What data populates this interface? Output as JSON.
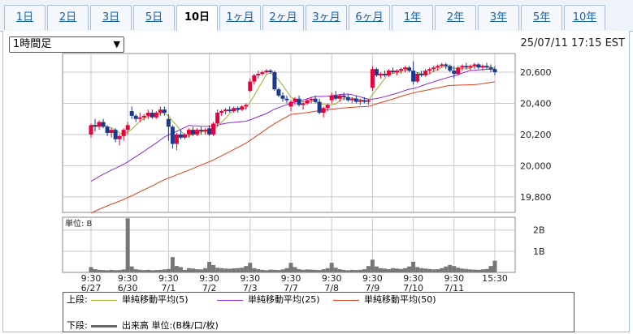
{
  "tabs": [
    {
      "label": "1日"
    },
    {
      "label": "2日"
    },
    {
      "label": "3日"
    },
    {
      "label": "5日"
    },
    {
      "label": "10日",
      "active": true
    },
    {
      "label": "1ヶ月"
    },
    {
      "label": "2ヶ月"
    },
    {
      "label": "3ヶ月"
    },
    {
      "label": "6ヶ月"
    },
    {
      "label": "1年"
    },
    {
      "label": "2年"
    },
    {
      "label": "3年"
    },
    {
      "label": "5年"
    },
    {
      "label": "10年"
    }
  ],
  "interval_select": {
    "value": "1時間足"
  },
  "timestamp": "25/07/11 17:15 EST",
  "colors": {
    "up": "#e8003c",
    "down": "#1a3a8f",
    "ma5": "#9aae2e",
    "ma25": "#8a2be2",
    "ma50": "#e0401b",
    "volume": "#777777"
  },
  "chart_data": {
    "type": "candlestick",
    "ylim": [
      19700,
      20720
    ],
    "y_ticks": [
      "20,600",
      "20,400",
      "20,200",
      "20,000",
      "19,800"
    ],
    "x_ticks": [
      {
        "index": 0,
        "time": "9:30",
        "date": "6/27"
      },
      {
        "index": 9,
        "time": "9:30",
        "date": "6/30"
      },
      {
        "index": 19,
        "time": "9:30",
        "date": "7/1"
      },
      {
        "index": 29,
        "time": "9:30",
        "date": "7/2"
      },
      {
        "index": 39,
        "time": "9:30",
        "date": "7/3"
      },
      {
        "index": 49,
        "time": "9:30",
        "date": "7/7"
      },
      {
        "index": 59,
        "time": "9:30",
        "date": "7/8"
      },
      {
        "index": 69,
        "time": "9:30",
        "date": "7/9"
      },
      {
        "index": 79,
        "time": "9:30",
        "date": "7/10"
      },
      {
        "index": 89,
        "time": "9:30",
        "date": "7/11"
      },
      {
        "index": 99,
        "time": "15:30",
        "date": ""
      }
    ],
    "candles": [
      [
        20200,
        20270,
        20180,
        20260
      ],
      [
        20260,
        20300,
        20220,
        20250
      ],
      [
        20250,
        20290,
        20230,
        20280
      ],
      [
        20280,
        20300,
        20240,
        20250
      ],
      [
        20250,
        20260,
        20190,
        20210
      ],
      [
        20210,
        20240,
        20180,
        20230
      ],
      [
        20230,
        20240,
        20150,
        20170
      ],
      [
        20170,
        20200,
        20130,
        20190
      ],
      [
        20190,
        20240,
        20160,
        20230
      ],
      [
        20230,
        20280,
        20200,
        20260
      ],
      [
        20350,
        20380,
        20300,
        20320
      ],
      [
        20320,
        20330,
        20280,
        20300
      ],
      [
        20300,
        20340,
        20280,
        20310
      ],
      [
        20310,
        20330,
        20290,
        20320
      ],
      [
        20320,
        20360,
        20300,
        20340
      ],
      [
        20340,
        20360,
        20300,
        20310
      ],
      [
        20310,
        20350,
        20300,
        20340
      ],
      [
        20340,
        20380,
        20320,
        20360
      ],
      [
        20360,
        20380,
        20320,
        20340
      ],
      [
        20300,
        20330,
        20160,
        20250
      ],
      [
        20250,
        20260,
        20110,
        20140
      ],
      [
        20140,
        20210,
        20100,
        20200
      ],
      [
        20200,
        20230,
        20170,
        20180
      ],
      [
        20180,
        20210,
        20170,
        20200
      ],
      [
        20200,
        20240,
        20180,
        20230
      ],
      [
        20230,
        20250,
        20190,
        20200
      ],
      [
        20200,
        20240,
        20190,
        20230
      ],
      [
        20230,
        20250,
        20200,
        20220
      ],
      [
        20220,
        20240,
        20200,
        20230
      ],
      [
        20240,
        20260,
        20190,
        20200
      ],
      [
        20200,
        20280,
        20190,
        20270
      ],
      [
        20270,
        20360,
        20250,
        20340
      ],
      [
        20340,
        20360,
        20320,
        20350
      ],
      [
        20350,
        20370,
        20330,
        20360
      ],
      [
        20360,
        20380,
        20340,
        20350
      ],
      [
        20350,
        20380,
        20340,
        20370
      ],
      [
        20370,
        20380,
        20340,
        20360
      ],
      [
        20360,
        20390,
        20350,
        20380
      ],
      [
        20380,
        20400,
        20360,
        20390
      ],
      [
        20480,
        20560,
        20470,
        20540
      ],
      [
        20540,
        20590,
        20520,
        20580
      ],
      [
        20580,
        20610,
        20560,
        20590
      ],
      [
        20590,
        20610,
        20580,
        20600
      ],
      [
        20600,
        20620,
        20590,
        20610
      ],
      [
        20610,
        20620,
        20590,
        20600
      ],
      [
        20600,
        20610,
        20480,
        20490
      ],
      [
        20490,
        20500,
        20440,
        20450
      ],
      [
        20450,
        20470,
        20410,
        20430
      ],
      [
        20430,
        20450,
        20400,
        20420
      ],
      [
        20380,
        20420,
        20350,
        20410
      ],
      [
        20410,
        20440,
        20390,
        20430
      ],
      [
        20430,
        20450,
        20380,
        20390
      ],
      [
        20390,
        20410,
        20360,
        20400
      ],
      [
        20400,
        20430,
        20390,
        20420
      ],
      [
        20420,
        20440,
        20400,
        20430
      ],
      [
        20430,
        20450,
        20400,
        20410
      ],
      [
        20410,
        20430,
        20330,
        20340
      ],
      [
        20340,
        20380,
        20310,
        20370
      ],
      [
        20370,
        20400,
        20350,
        20390
      ],
      [
        20420,
        20470,
        20400,
        20450
      ],
      [
        20450,
        20480,
        20420,
        20430
      ],
      [
        20430,
        20460,
        20410,
        20450
      ],
      [
        20450,
        20470,
        20420,
        20440
      ],
      [
        20440,
        20460,
        20410,
        20420
      ],
      [
        20420,
        20440,
        20400,
        20430
      ],
      [
        20430,
        20450,
        20400,
        20410
      ],
      [
        20410,
        20430,
        20390,
        20420
      ],
      [
        20420,
        20440,
        20400,
        20410
      ],
      [
        20410,
        20430,
        20390,
        20420
      ],
      [
        20500,
        20640,
        20480,
        20620
      ],
      [
        20620,
        20630,
        20570,
        20580
      ],
      [
        20580,
        20600,
        20560,
        20590
      ],
      [
        20590,
        20610,
        20570,
        20580
      ],
      [
        20580,
        20620,
        20570,
        20610
      ],
      [
        20610,
        20630,
        20590,
        20600
      ],
      [
        20600,
        20620,
        20580,
        20610
      ],
      [
        20610,
        20630,
        20590,
        20620
      ],
      [
        20620,
        20640,
        20600,
        20630
      ],
      [
        20630,
        20640,
        20600,
        20610
      ],
      [
        20610,
        20670,
        20520,
        20540
      ],
      [
        20540,
        20600,
        20530,
        20590
      ],
      [
        20590,
        20610,
        20570,
        20580
      ],
      [
        20580,
        20620,
        20570,
        20610
      ],
      [
        20610,
        20630,
        20590,
        20620
      ],
      [
        20620,
        20640,
        20600,
        20630
      ],
      [
        20630,
        20650,
        20610,
        20640
      ],
      [
        20640,
        20660,
        20630,
        20650
      ],
      [
        20650,
        20660,
        20620,
        20640
      ],
      [
        20640,
        20650,
        20600,
        20610
      ],
      [
        20610,
        20640,
        20560,
        20590
      ],
      [
        20590,
        20640,
        20580,
        20630
      ],
      [
        20630,
        20650,
        20610,
        20640
      ],
      [
        20640,
        20660,
        20620,
        20630
      ],
      [
        20630,
        20650,
        20610,
        20640
      ],
      [
        20640,
        20660,
        20620,
        20650
      ],
      [
        20650,
        20660,
        20620,
        20630
      ],
      [
        20630,
        20650,
        20610,
        20640
      ],
      [
        20640,
        20660,
        20620,
        20630
      ],
      [
        20630,
        20650,
        20600,
        20620
      ],
      [
        20620,
        20640,
        20580,
        20600
      ]
    ],
    "volume_panel": {
      "unit_label": "単位: B",
      "ylim": [
        0,
        2.6
      ],
      "y_ticks": [
        {
          "label": "2B",
          "value": 2
        },
        {
          "label": "1B",
          "value": 1
        }
      ],
      "values": [
        0.25,
        0.15,
        0.12,
        0.11,
        0.1,
        0.12,
        0.1,
        0.11,
        0.14,
        2.55,
        0.28,
        0.15,
        0.12,
        0.11,
        0.12,
        0.1,
        0.11,
        0.12,
        0.14,
        0.16,
        0.72,
        0.3,
        0.25,
        0.12,
        0.2,
        0.18,
        0.15,
        0.14,
        0.2,
        0.5,
        0.35,
        0.22,
        0.2,
        0.18,
        0.17,
        0.19,
        0.2,
        0.22,
        0.3,
        0.45,
        0.2,
        0.15,
        0.12,
        0.1,
        0.13,
        0.12,
        0.11,
        0.14,
        0.2,
        0.45,
        0.25,
        0.15,
        0.12,
        0.14,
        0.13,
        0.12,
        0.11,
        0.15,
        0.2,
        0.45,
        0.22,
        0.15,
        0.12,
        0.1,
        0.12,
        0.11,
        0.12,
        0.15,
        0.3,
        0.6,
        0.28,
        0.2,
        0.18,
        0.15,
        0.2,
        0.18,
        0.16,
        0.2,
        0.28,
        0.5,
        0.25,
        0.2,
        0.18,
        0.16,
        0.14,
        0.15,
        0.2,
        0.28,
        0.35,
        0.3,
        0.22,
        0.18,
        0.16,
        0.14,
        0.13,
        0.12,
        0.14,
        0.16,
        0.3,
        0.55
      ]
    },
    "series": [
      {
        "key": "ma5",
        "name": "単純移動平均(5)"
      },
      {
        "key": "ma25",
        "name": "単純移動平均(25)"
      },
      {
        "key": "ma50",
        "name": "単純移動平均(50)"
      }
    ],
    "ma_prefill": {
      "ma25": 19885,
      "ma50": 19685
    }
  },
  "legend": {
    "upper_label": "上段:",
    "lower_label": "下段:",
    "ma5": "単純移動平均(5)",
    "ma25": "単純移動平均(25)",
    "ma50": "単純移動平均(50)",
    "volume": "出来高 単位:(B株/口/枚)"
  }
}
